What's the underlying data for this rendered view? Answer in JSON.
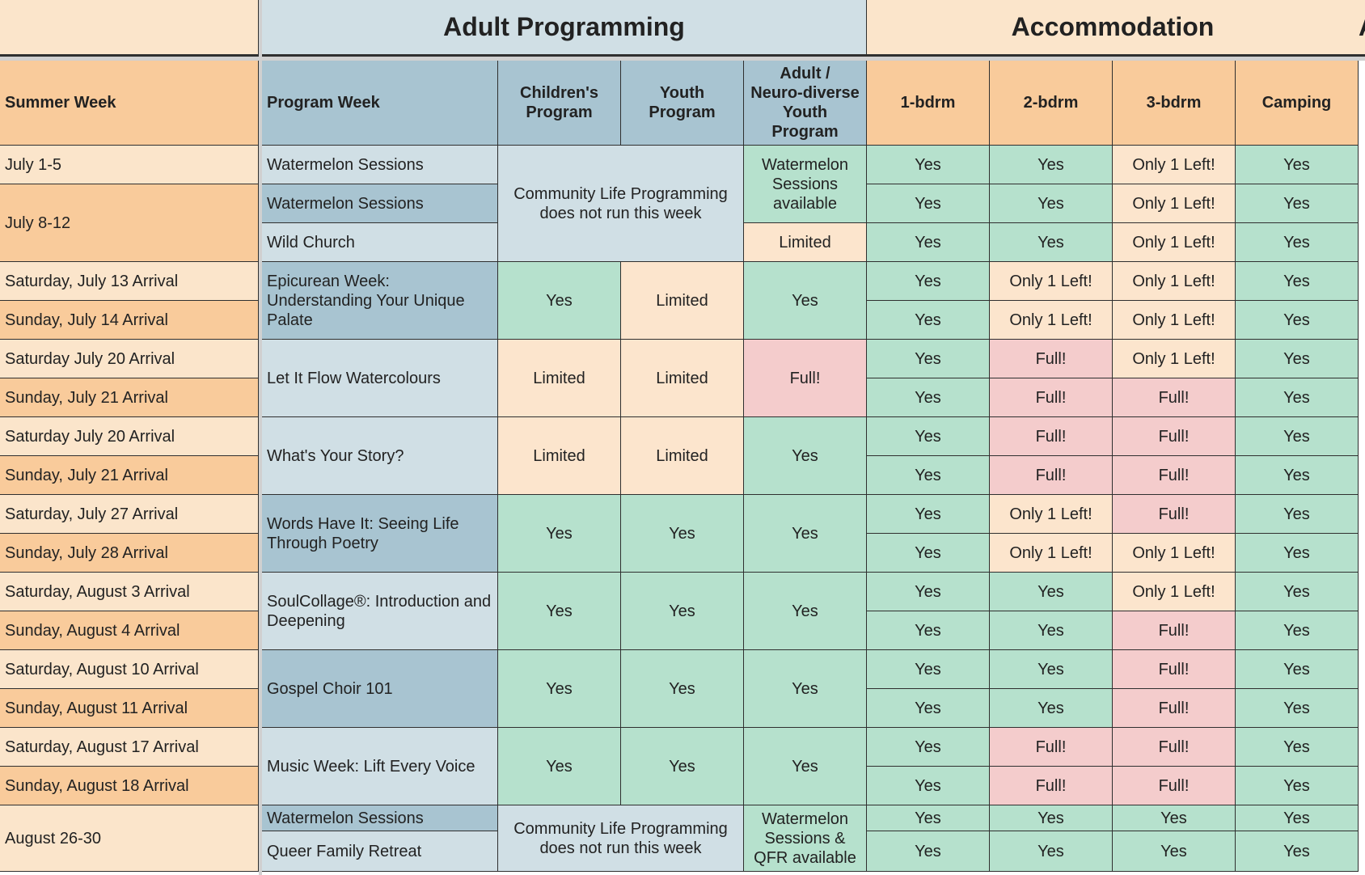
{
  "colors": {
    "summer_light": "#fbe5cb",
    "summer_dark": "#f9cb9b",
    "program_light": "#d0dfe5",
    "program_dark": "#a8c4d1",
    "green": "#b6e1cd",
    "peach": "#fce5cd",
    "red": "#f4cccc"
  },
  "sections": {
    "adult": "Adult Programming",
    "accommodation": "Accommodation",
    "overflow": "A"
  },
  "headers": {
    "summer_week": "Summer Week",
    "program_week": "Program Week",
    "children": "Children's\nProgram",
    "youth": "Youth\nProgram",
    "adult_neuro": "Adult /\nNeuro-diverse\nYouth\nProgram",
    "b1": "1-bdrm",
    "b2": "2-bdrm",
    "b3": "3-bdrm",
    "camp": "Camping"
  },
  "summer_weeks": [
    "July 1-5",
    "July 8-12",
    "Saturday, July 13 Arrival",
    "Sunday, July 14 Arrival",
    "Saturday July 20 Arrival",
    "Sunday, July 21 Arrival",
    "Saturday July 20 Arrival",
    "Sunday, July 21 Arrival",
    "Saturday, July 27 Arrival",
    "Sunday, July 28 Arrival",
    "Saturday, August 3 Arrival",
    "Sunday, August 4 Arrival",
    "Saturday, August 10 Arrival",
    "Sunday, August 11 Arrival",
    "Saturday, August 17 Arrival",
    "Sunday, August 18 Arrival",
    "August 26-30"
  ],
  "programs": [
    "Watermelon Sessions",
    "Watermelon Sessions",
    "Wild Church",
    "Epicurean Week: Understanding Your Unique Palate",
    "Let It Flow Watercolours",
    "What's Your Story?",
    "Words Have It: Seeing Life Through Poetry",
    "SoulCollage®: Introduction and Deepening",
    "Gospel Choir 101",
    "Music Week: Lift Every Voice",
    "Watermelon Sessions",
    "Queer Family Retreat"
  ],
  "community_life": [
    "Community Life Programming does not run this week",
    "Community Life Programming does not run this week"
  ],
  "children": [
    "Yes",
    "Limited",
    "Limited",
    "Yes",
    "Yes",
    "Yes",
    "Yes"
  ],
  "youth": [
    "Limited",
    "Limited",
    "Limited",
    "Yes",
    "Yes",
    "Yes",
    "Yes"
  ],
  "adult_neuro": [
    "Watermelon\nSessions\navailable",
    "Limited",
    "Yes",
    "Full!",
    "Yes",
    "Yes",
    "Yes",
    "Yes",
    "Yes",
    "Watermelon\nSessions &\nQFR available"
  ],
  "accommodation": [
    [
      "Yes",
      "Yes",
      "Only 1 Left!",
      "Yes"
    ],
    [
      "Yes",
      "Yes",
      "Only 1 Left!",
      "Yes"
    ],
    [
      "Yes",
      "Yes",
      "Only 1 Left!",
      "Yes"
    ],
    [
      "Yes",
      "Only 1 Left!",
      "Only 1 Left!",
      "Yes"
    ],
    [
      "Yes",
      "Only 1 Left!",
      "Only 1 Left!",
      "Yes"
    ],
    [
      "Yes",
      "Full!",
      "Only 1 Left!",
      "Yes"
    ],
    [
      "Yes",
      "Full!",
      "Full!",
      "Yes"
    ],
    [
      "Yes",
      "Full!",
      "Full!",
      "Yes"
    ],
    [
      "Yes",
      "Full!",
      "Full!",
      "Yes"
    ],
    [
      "Yes",
      "Only 1 Left!",
      "Full!",
      "Yes"
    ],
    [
      "Yes",
      "Only 1 Left!",
      "Only 1 Left!",
      "Yes"
    ],
    [
      "Yes",
      "Yes",
      "Only 1 Left!",
      "Yes"
    ],
    [
      "Yes",
      "Yes",
      "Full!",
      "Yes"
    ],
    [
      "Yes",
      "Yes",
      "Full!",
      "Yes"
    ],
    [
      "Yes",
      "Yes",
      "Full!",
      "Yes"
    ],
    [
      "Yes",
      "Full!",
      "Full!",
      "Yes"
    ],
    [
      "Yes",
      "Full!",
      "Full!",
      "Yes"
    ],
    [
      "Yes",
      "Yes",
      "Yes",
      "Yes"
    ],
    [
      "Yes",
      "Yes",
      "Yes",
      "Yes"
    ]
  ]
}
